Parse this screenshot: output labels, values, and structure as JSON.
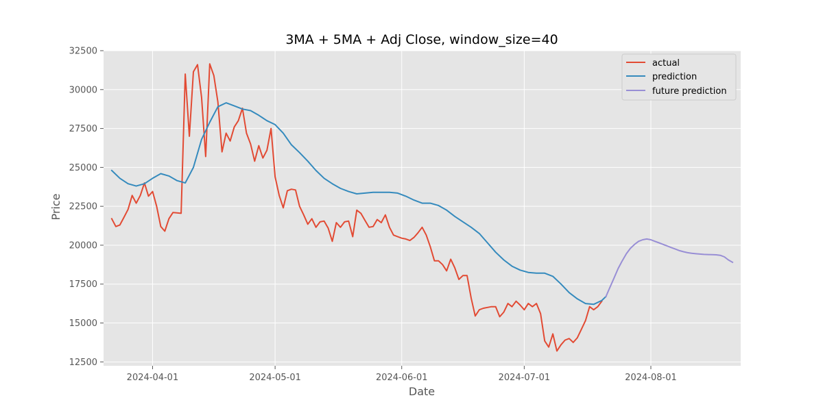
{
  "chart_data": {
    "type": "line",
    "title": "3MA + 5MA + Adj Close, window_size=40",
    "xlabel": "Date",
    "ylabel": "Price",
    "x_range": [
      "2024-03-20",
      "2024-08-23"
    ],
    "ylim": [
      12250,
      32500
    ],
    "yticks": [
      12500,
      15000,
      17500,
      20000,
      22500,
      25000,
      27500,
      30000,
      32500
    ],
    "xticks": [
      "2024-04-01",
      "2024-05-01",
      "2024-06-01",
      "2024-07-01",
      "2024-08-01"
    ],
    "grid": true,
    "legend_position": "top-right",
    "background": "#e5e5e5",
    "series": [
      {
        "name": "actual",
        "color": "#e24a33",
        "points": [
          [
            "2024-03-22",
            21700
          ],
          [
            "2024-03-23",
            21200
          ],
          [
            "2024-03-24",
            21300
          ],
          [
            "2024-03-25",
            21800
          ],
          [
            "2024-03-26",
            22300
          ],
          [
            "2024-03-27",
            23200
          ],
          [
            "2024-03-28",
            22700
          ],
          [
            "2024-03-29",
            23200
          ],
          [
            "2024-03-30",
            24000
          ],
          [
            "2024-03-31",
            23150
          ],
          [
            "2024-04-01",
            23450
          ],
          [
            "2024-04-02",
            22500
          ],
          [
            "2024-04-03",
            21200
          ],
          [
            "2024-04-04",
            20900
          ],
          [
            "2024-04-05",
            21700
          ],
          [
            "2024-04-06",
            22100
          ],
          [
            "2024-04-08",
            22050
          ],
          [
            "2024-04-09",
            31000
          ],
          [
            "2024-04-10",
            27000
          ],
          [
            "2024-04-11",
            31150
          ],
          [
            "2024-04-12",
            31600
          ],
          [
            "2024-04-13",
            29500
          ],
          [
            "2024-04-14",
            25700
          ],
          [
            "2024-04-15",
            31650
          ],
          [
            "2024-04-16",
            30900
          ],
          [
            "2024-04-17",
            29200
          ],
          [
            "2024-04-18",
            26000
          ],
          [
            "2024-04-19",
            27200
          ],
          [
            "2024-04-20",
            26700
          ],
          [
            "2024-04-21",
            27600
          ],
          [
            "2024-04-22",
            28000
          ],
          [
            "2024-04-23",
            28800
          ],
          [
            "2024-04-24",
            27200
          ],
          [
            "2024-04-25",
            26500
          ],
          [
            "2024-04-26",
            25400
          ],
          [
            "2024-04-27",
            26400
          ],
          [
            "2024-04-28",
            25600
          ],
          [
            "2024-04-29",
            26100
          ],
          [
            "2024-04-30",
            27500
          ],
          [
            "2024-05-01",
            24400
          ],
          [
            "2024-05-02",
            23200
          ],
          [
            "2024-05-03",
            22400
          ],
          [
            "2024-05-04",
            23500
          ],
          [
            "2024-05-05",
            23600
          ],
          [
            "2024-05-06",
            23550
          ],
          [
            "2024-05-07",
            22500
          ],
          [
            "2024-05-08",
            21950
          ],
          [
            "2024-05-09",
            21350
          ],
          [
            "2024-05-10",
            21700
          ],
          [
            "2024-05-11",
            21150
          ],
          [
            "2024-05-12",
            21500
          ],
          [
            "2024-05-13",
            21550
          ],
          [
            "2024-05-14",
            21100
          ],
          [
            "2024-05-15",
            20250
          ],
          [
            "2024-05-16",
            21450
          ],
          [
            "2024-05-17",
            21150
          ],
          [
            "2024-05-18",
            21500
          ],
          [
            "2024-05-19",
            21550
          ],
          [
            "2024-05-20",
            20550
          ],
          [
            "2024-05-21",
            22250
          ],
          [
            "2024-05-22",
            22050
          ],
          [
            "2024-05-23",
            21600
          ],
          [
            "2024-05-24",
            21150
          ],
          [
            "2024-05-25",
            21200
          ],
          [
            "2024-05-26",
            21650
          ],
          [
            "2024-05-27",
            21450
          ],
          [
            "2024-05-28",
            21950
          ],
          [
            "2024-05-29",
            21150
          ],
          [
            "2024-05-30",
            20650
          ],
          [
            "2024-05-31",
            20550
          ],
          [
            "2024-06-01",
            20450
          ],
          [
            "2024-06-02",
            20400
          ],
          [
            "2024-06-03",
            20300
          ],
          [
            "2024-06-04",
            20500
          ],
          [
            "2024-06-05",
            20800
          ],
          [
            "2024-06-06",
            21150
          ],
          [
            "2024-06-07",
            20650
          ],
          [
            "2024-06-08",
            19900
          ],
          [
            "2024-06-09",
            19000
          ],
          [
            "2024-06-10",
            19000
          ],
          [
            "2024-06-11",
            18750
          ],
          [
            "2024-06-12",
            18350
          ],
          [
            "2024-06-13",
            19100
          ],
          [
            "2024-06-14",
            18550
          ],
          [
            "2024-06-15",
            17800
          ],
          [
            "2024-06-16",
            18050
          ],
          [
            "2024-06-17",
            18050
          ],
          [
            "2024-06-18",
            16600
          ],
          [
            "2024-06-19",
            15450
          ],
          [
            "2024-06-20",
            15850
          ],
          [
            "2024-06-21",
            15950
          ],
          [
            "2024-06-22",
            16000
          ],
          [
            "2024-06-23",
            16050
          ],
          [
            "2024-06-24",
            16050
          ],
          [
            "2024-06-25",
            15400
          ],
          [
            "2024-06-26",
            15700
          ],
          [
            "2024-06-27",
            16250
          ],
          [
            "2024-06-28",
            16050
          ],
          [
            "2024-06-29",
            16400
          ],
          [
            "2024-06-30",
            16150
          ],
          [
            "2024-07-01",
            15850
          ],
          [
            "2024-07-02",
            16250
          ],
          [
            "2024-07-03",
            16050
          ],
          [
            "2024-07-04",
            16250
          ],
          [
            "2024-07-05",
            15600
          ],
          [
            "2024-07-06",
            13850
          ],
          [
            "2024-07-07",
            13450
          ],
          [
            "2024-07-08",
            14300
          ],
          [
            "2024-07-09",
            13200
          ],
          [
            "2024-07-10",
            13600
          ],
          [
            "2024-07-11",
            13900
          ],
          [
            "2024-07-12",
            14000
          ],
          [
            "2024-07-13",
            13750
          ],
          [
            "2024-07-14",
            14050
          ],
          [
            "2024-07-15",
            14600
          ],
          [
            "2024-07-16",
            15150
          ],
          [
            "2024-07-17",
            16050
          ],
          [
            "2024-07-18",
            15850
          ],
          [
            "2024-07-19",
            16050
          ],
          [
            "2024-07-20",
            16400
          ]
        ]
      },
      {
        "name": "prediction",
        "color": "#348abd",
        "points": [
          [
            "2024-03-22",
            24800
          ],
          [
            "2024-03-24",
            24300
          ],
          [
            "2024-03-26",
            23950
          ],
          [
            "2024-03-28",
            23800
          ],
          [
            "2024-03-30",
            23950
          ],
          [
            "2024-04-01",
            24300
          ],
          [
            "2024-04-03",
            24600
          ],
          [
            "2024-04-05",
            24450
          ],
          [
            "2024-04-07",
            24150
          ],
          [
            "2024-04-09",
            24000
          ],
          [
            "2024-04-11",
            25000
          ],
          [
            "2024-04-13",
            26800
          ],
          [
            "2024-04-15",
            27900
          ],
          [
            "2024-04-17",
            28900
          ],
          [
            "2024-04-19",
            29150
          ],
          [
            "2024-04-21",
            28950
          ],
          [
            "2024-04-23",
            28750
          ],
          [
            "2024-04-25",
            28650
          ],
          [
            "2024-04-27",
            28350
          ],
          [
            "2024-04-29",
            28000
          ],
          [
            "2024-05-01",
            27750
          ],
          [
            "2024-05-03",
            27200
          ],
          [
            "2024-05-05",
            26450
          ],
          [
            "2024-05-07",
            25950
          ],
          [
            "2024-05-09",
            25400
          ],
          [
            "2024-05-11",
            24800
          ],
          [
            "2024-05-13",
            24300
          ],
          [
            "2024-05-15",
            23950
          ],
          [
            "2024-05-17",
            23650
          ],
          [
            "2024-05-19",
            23450
          ],
          [
            "2024-05-21",
            23300
          ],
          [
            "2024-05-23",
            23350
          ],
          [
            "2024-05-25",
            23400
          ],
          [
            "2024-05-27",
            23400
          ],
          [
            "2024-05-29",
            23400
          ],
          [
            "2024-05-31",
            23350
          ],
          [
            "2024-06-02",
            23150
          ],
          [
            "2024-06-04",
            22900
          ],
          [
            "2024-06-06",
            22700
          ],
          [
            "2024-06-08",
            22700
          ],
          [
            "2024-06-10",
            22550
          ],
          [
            "2024-06-12",
            22250
          ],
          [
            "2024-06-14",
            21850
          ],
          [
            "2024-06-16",
            21500
          ],
          [
            "2024-06-18",
            21150
          ],
          [
            "2024-06-20",
            20750
          ],
          [
            "2024-06-22",
            20150
          ],
          [
            "2024-06-24",
            19550
          ],
          [
            "2024-06-26",
            19050
          ],
          [
            "2024-06-28",
            18650
          ],
          [
            "2024-06-30",
            18400
          ],
          [
            "2024-07-02",
            18250
          ],
          [
            "2024-07-04",
            18200
          ],
          [
            "2024-07-06",
            18200
          ],
          [
            "2024-07-08",
            18000
          ],
          [
            "2024-07-10",
            17500
          ],
          [
            "2024-07-12",
            16950
          ],
          [
            "2024-07-14",
            16550
          ],
          [
            "2024-07-16",
            16250
          ],
          [
            "2024-07-18",
            16200
          ],
          [
            "2024-07-20",
            16450
          ],
          [
            "2024-07-21",
            16700
          ]
        ]
      },
      {
        "name": "future prediction",
        "color": "#988ed5",
        "points": [
          [
            "2024-07-21",
            16700
          ],
          [
            "2024-07-22",
            17300
          ],
          [
            "2024-07-23",
            17900
          ],
          [
            "2024-07-24",
            18500
          ],
          [
            "2024-07-25",
            19000
          ],
          [
            "2024-07-26",
            19450
          ],
          [
            "2024-07-27",
            19800
          ],
          [
            "2024-07-28",
            20050
          ],
          [
            "2024-07-29",
            20250
          ],
          [
            "2024-07-30",
            20350
          ],
          [
            "2024-07-31",
            20400
          ],
          [
            "2024-08-01",
            20350
          ],
          [
            "2024-08-02",
            20250
          ],
          [
            "2024-08-03",
            20150
          ],
          [
            "2024-08-04",
            20050
          ],
          [
            "2024-08-05",
            19950
          ],
          [
            "2024-08-06",
            19850
          ],
          [
            "2024-08-07",
            19750
          ],
          [
            "2024-08-08",
            19650
          ],
          [
            "2024-08-09",
            19580
          ],
          [
            "2024-08-10",
            19520
          ],
          [
            "2024-08-11",
            19480
          ],
          [
            "2024-08-12",
            19450
          ],
          [
            "2024-08-13",
            19430
          ],
          [
            "2024-08-14",
            19410
          ],
          [
            "2024-08-15",
            19400
          ],
          [
            "2024-08-16",
            19390
          ],
          [
            "2024-08-17",
            19380
          ],
          [
            "2024-08-18",
            19350
          ],
          [
            "2024-08-19",
            19250
          ],
          [
            "2024-08-20",
            19050
          ],
          [
            "2024-08-21",
            18900
          ]
        ]
      }
    ]
  }
}
